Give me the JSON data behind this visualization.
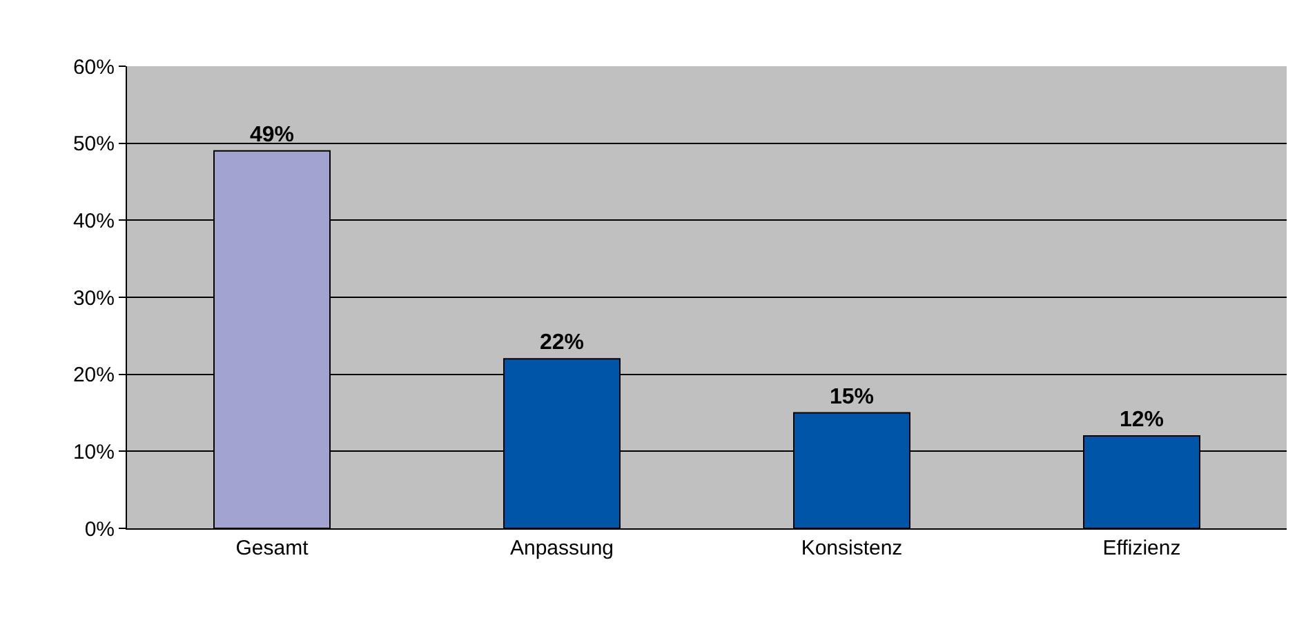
{
  "chart_data": {
    "type": "bar",
    "categories": [
      "Gesamt",
      "Anpassung",
      "Konsistenz",
      "Effizienz"
    ],
    "values": [
      49,
      22,
      15,
      12
    ],
    "value_labels": [
      "49%",
      "22%",
      "15%",
      "12%"
    ],
    "colors": [
      "#a3a3cf",
      "#0055a8",
      "#0055a8",
      "#0055a8"
    ],
    "ylim": [
      0,
      60
    ],
    "yticks": [
      {
        "value": 0,
        "label": "0%"
      },
      {
        "value": 10,
        "label": "10%"
      },
      {
        "value": 20,
        "label": "20%"
      },
      {
        "value": 30,
        "label": "30%"
      },
      {
        "value": 40,
        "label": "40%"
      },
      {
        "value": 50,
        "label": "50%"
      },
      {
        "value": 60,
        "label": "60%"
      }
    ],
    "grid": "y"
  }
}
